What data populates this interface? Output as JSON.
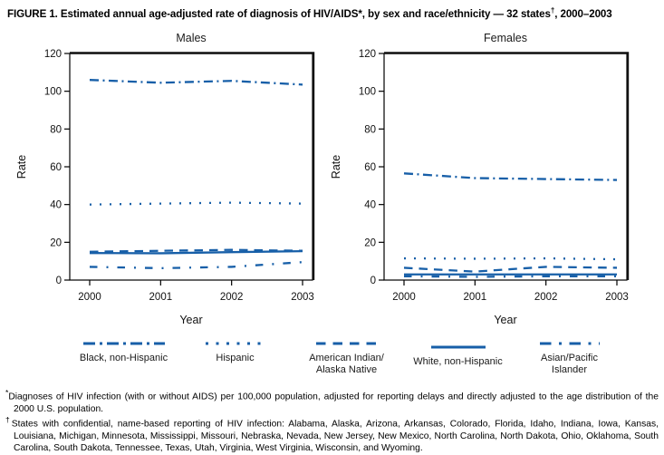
{
  "title": {
    "part1": "FIGURE 1. Estimated annual age-adjusted rate of diagnosis of HIV/AIDS*, by sex and race/ethnicity — 32 states",
    "dagger": "†",
    "part2": ", 2000–2003"
  },
  "accent_color": "#175fa8",
  "chart_data": [
    {
      "type": "line",
      "title": "Males",
      "xlabel": "Year",
      "ylabel": "Rate",
      "x": [
        2000,
        2001,
        2002,
        2003
      ],
      "ylim": [
        0,
        120
      ],
      "yticks": [
        0,
        20,
        40,
        60,
        80,
        100,
        120
      ],
      "grid": false,
      "legend_position": "bottom",
      "series": [
        {
          "name": "Black, non-Hispanic",
          "style": "dashdot-long",
          "values": [
            106,
            104.5,
            105.5,
            103.5
          ]
        },
        {
          "name": "Hispanic",
          "style": "dotted",
          "values": [
            40,
            40.5,
            41,
            40.5
          ]
        },
        {
          "name": "American Indian/Alaska Native",
          "style": "dashed",
          "values": [
            15,
            15.5,
            16,
            15.5
          ]
        },
        {
          "name": "White, non-Hispanic",
          "style": "solid",
          "values": [
            14.3,
            14.2,
            14.8,
            15.3
          ]
        },
        {
          "name": "Asian/Pacific Islander",
          "style": "dashdot-short",
          "values": [
            7,
            6.3,
            7,
            9.5
          ]
        }
      ]
    },
    {
      "type": "line",
      "title": "Females",
      "xlabel": "Year",
      "ylabel": "Rate",
      "x": [
        2000,
        2001,
        2002,
        2003
      ],
      "ylim": [
        0,
        120
      ],
      "yticks": [
        0,
        20,
        40,
        60,
        80,
        100,
        120
      ],
      "grid": false,
      "legend_position": "bottom",
      "series": [
        {
          "name": "Black, non-Hispanic",
          "style": "dashdot-long",
          "values": [
            56.5,
            54,
            53.5,
            53
          ]
        },
        {
          "name": "Hispanic",
          "style": "dotted",
          "values": [
            11.5,
            11.3,
            11.5,
            11
          ]
        },
        {
          "name": "American Indian/Alaska Native",
          "style": "dashed",
          "values": [
            6.5,
            4.5,
            7,
            6.5
          ]
        },
        {
          "name": "White, non-Hispanic",
          "style": "solid",
          "values": [
            3,
            3,
            3,
            3
          ]
        },
        {
          "name": "Asian/Pacific Islander",
          "style": "dashdot-short",
          "values": [
            2,
            1.7,
            2,
            2
          ]
        }
      ]
    }
  ],
  "legend": {
    "items": [
      {
        "lines": [
          "Black, non-Hispanic"
        ],
        "style": "dashdot-long"
      },
      {
        "lines": [
          "Hispanic"
        ],
        "style": "dotted"
      },
      {
        "lines": [
          "American Indian/",
          "Alaska Native"
        ],
        "style": "dashed"
      },
      {
        "lines": [
          "White, non-Hispanic"
        ],
        "style": "solid"
      },
      {
        "lines": [
          "Asian/Pacific",
          "Islander"
        ],
        "style": "dashdot-short"
      }
    ]
  },
  "footnotes": [
    {
      "marker": "*",
      "text": "Diagnoses of HIV infection (with or without AIDS) per 100,000 population, adjusted for reporting delays and directly adjusted to the age distribution of the 2000 U.S. population."
    },
    {
      "marker": "†",
      "text": "States with confidential, name-based reporting of HIV infection: Alabama, Alaska, Arizona, Arkansas, Colorado, Florida, Idaho, Indiana, Iowa, Kansas, Louisiana, Michigan, Minnesota, Mississippi, Missouri, Nebraska, Nevada, New Jersey, New Mexico, North Carolina, North Dakota, Ohio, Oklahoma, South Carolina, South Dakota, Tennessee, Texas, Utah, Virginia, West Virginia, Wisconsin, and Wyoming."
    }
  ]
}
